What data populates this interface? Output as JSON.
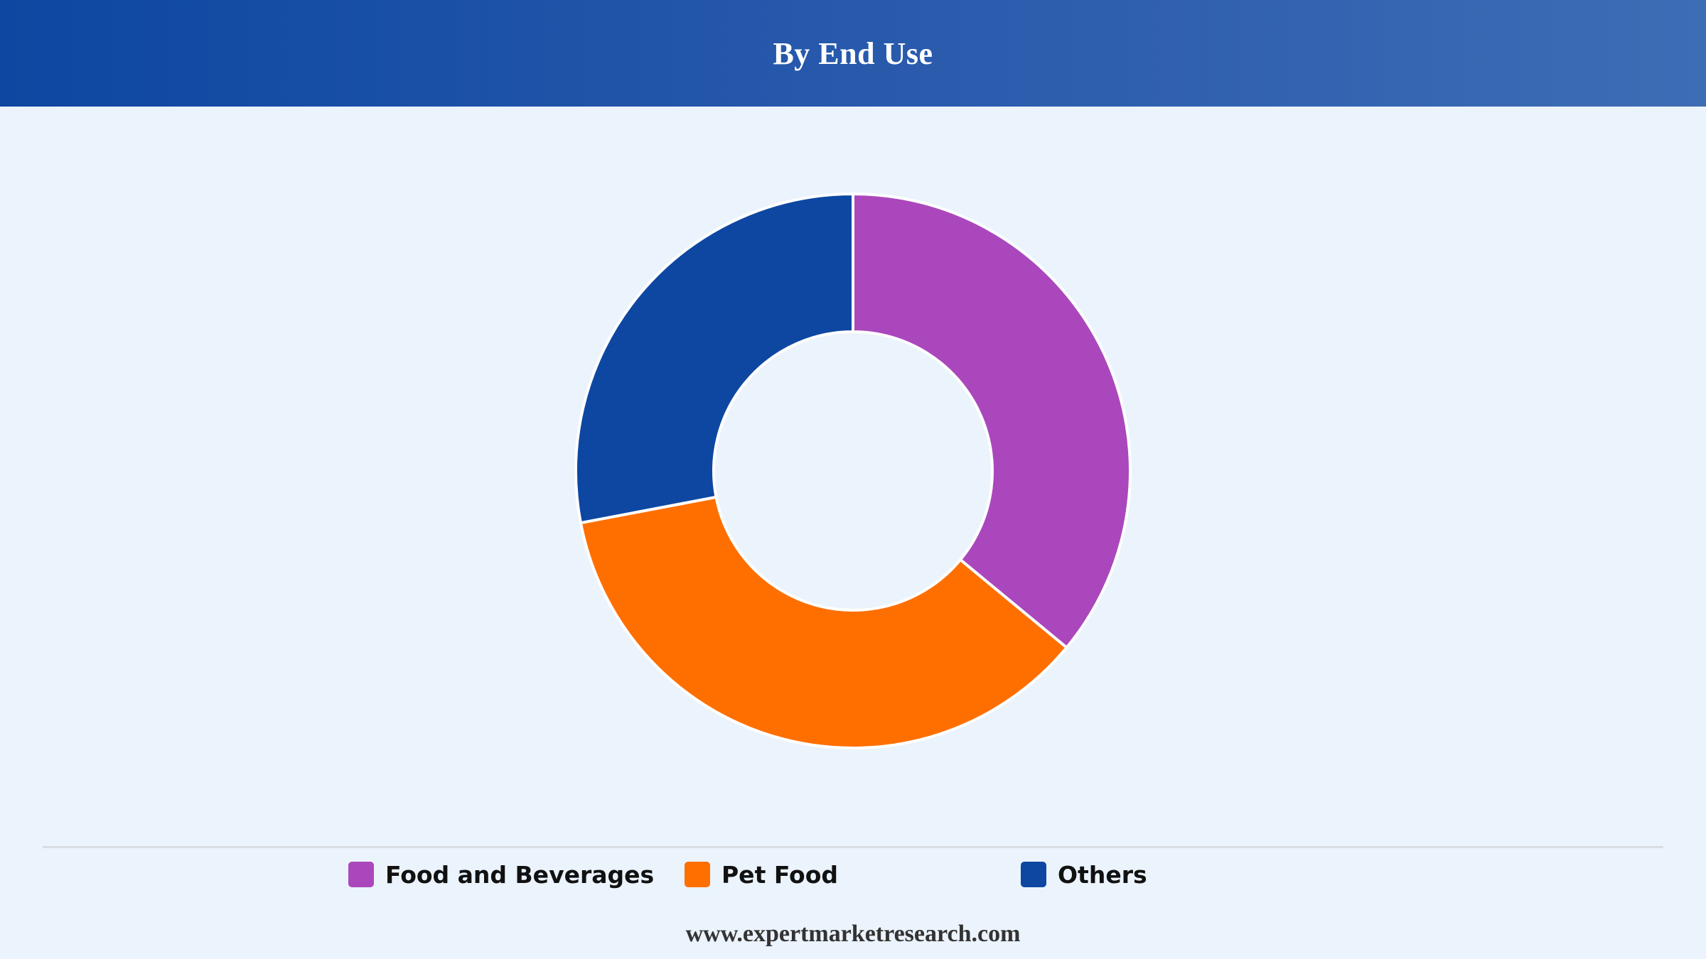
{
  "header": {
    "title": "By End Use"
  },
  "chart_data": {
    "type": "pie",
    "variant": "donut",
    "title": "By End Use",
    "categories": [
      "Food and Beverages",
      "Pet Food",
      "Others"
    ],
    "values": [
      36,
      36,
      28
    ],
    "unit": "%",
    "colors": [
      "#ab47bc",
      "#ff6f00",
      "#0d47a1"
    ],
    "legend_position": "bottom"
  },
  "legend": {
    "items": [
      {
        "label": "Food and Beverages",
        "color": "#ab47bc"
      },
      {
        "label": "Pet Food",
        "color": "#ff6f00"
      },
      {
        "label": "Others",
        "color": "#0d47a1"
      }
    ]
  },
  "footer": {
    "source": "www.expertmarketresearch.com"
  },
  "colors": {
    "header_start": "#0d47a1",
    "header_end": "#3d6db5",
    "background": "#ebf3fc"
  }
}
